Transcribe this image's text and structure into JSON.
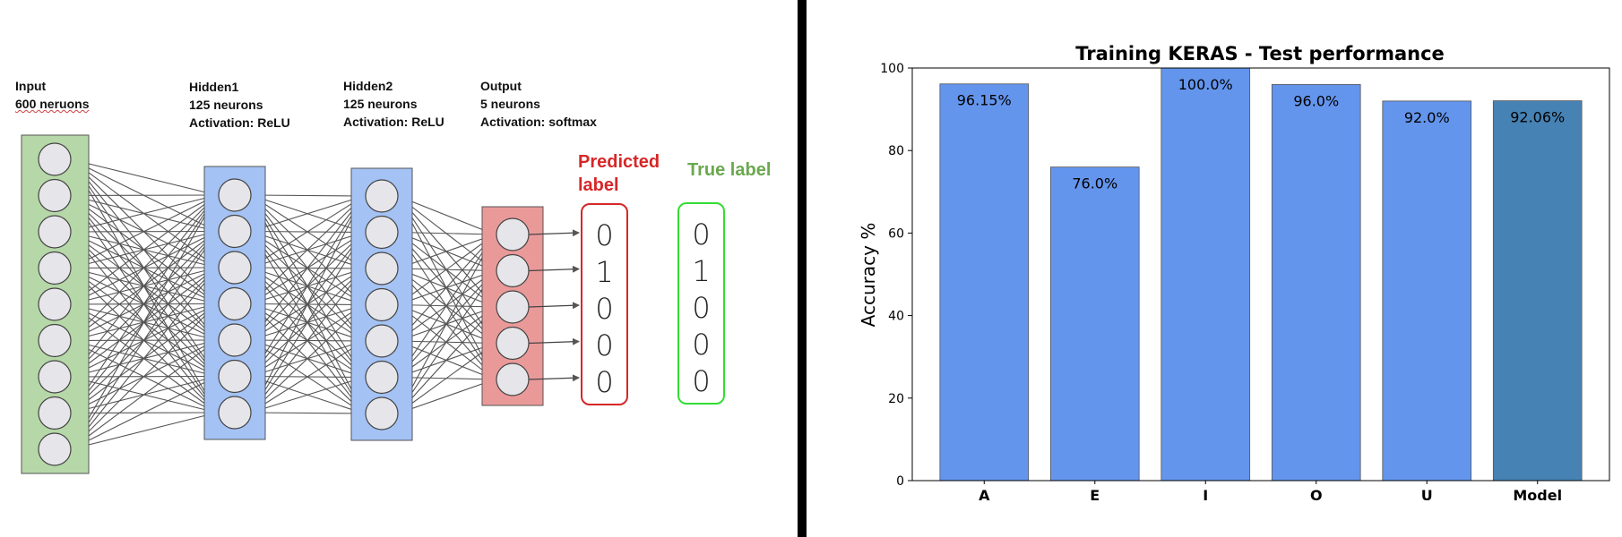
{
  "network": {
    "layers": [
      {
        "name": "Input",
        "lines": [
          "Input",
          "600 neruons"
        ],
        "nodes_shown": 9,
        "color": "#b6d7a8"
      },
      {
        "name": "Hidden1",
        "lines": [
          "Hidden1",
          "125 neurons",
          "Activation: ReLU"
        ],
        "nodes_shown": 7,
        "color": "#a4c2f4"
      },
      {
        "name": "Hidden2",
        "lines": [
          "Hidden2",
          "125 neurons",
          "Activation: ReLU"
        ],
        "nodes_shown": 7,
        "color": "#a4c2f4"
      },
      {
        "name": "Output",
        "lines": [
          "Output",
          "5 neurons",
          "Activation: softmax"
        ],
        "nodes_shown": 5,
        "color": "#ea9999"
      }
    ],
    "predicted": {
      "title_lines": [
        "Predicted",
        "label"
      ],
      "values": [
        "0",
        "1",
        "0",
        "0",
        "0"
      ],
      "color": "#d62728"
    },
    "true_label": {
      "title": "True label",
      "values": [
        "0",
        "1",
        "0",
        "0",
        "0"
      ],
      "color": "#6aa84f",
      "border": "#33dd33"
    }
  },
  "chart_data": {
    "type": "bar",
    "title": "Training KERAS - Test performance",
    "xlabel": "",
    "ylabel": "Accuracy %",
    "categories": [
      "A",
      "E",
      "I",
      "O",
      "U",
      "Model"
    ],
    "values": [
      96.15,
      76.0,
      100.0,
      96.0,
      92.0,
      92.06
    ],
    "data_labels": [
      "96.15%",
      "76.0%",
      "100.0%",
      "96.0%",
      "92.0%",
      "92.06%"
    ],
    "colors": [
      "#6495ed",
      "#6495ed",
      "#6495ed",
      "#6495ed",
      "#6495ed",
      "#4682b4"
    ],
    "ylim": [
      0,
      100
    ],
    "yticks": [
      0,
      20,
      40,
      60,
      80,
      100
    ],
    "ytick_labels": [
      "0",
      "20",
      "40",
      "60",
      "80",
      "100"
    ],
    "grid": false,
    "legend": "none"
  }
}
